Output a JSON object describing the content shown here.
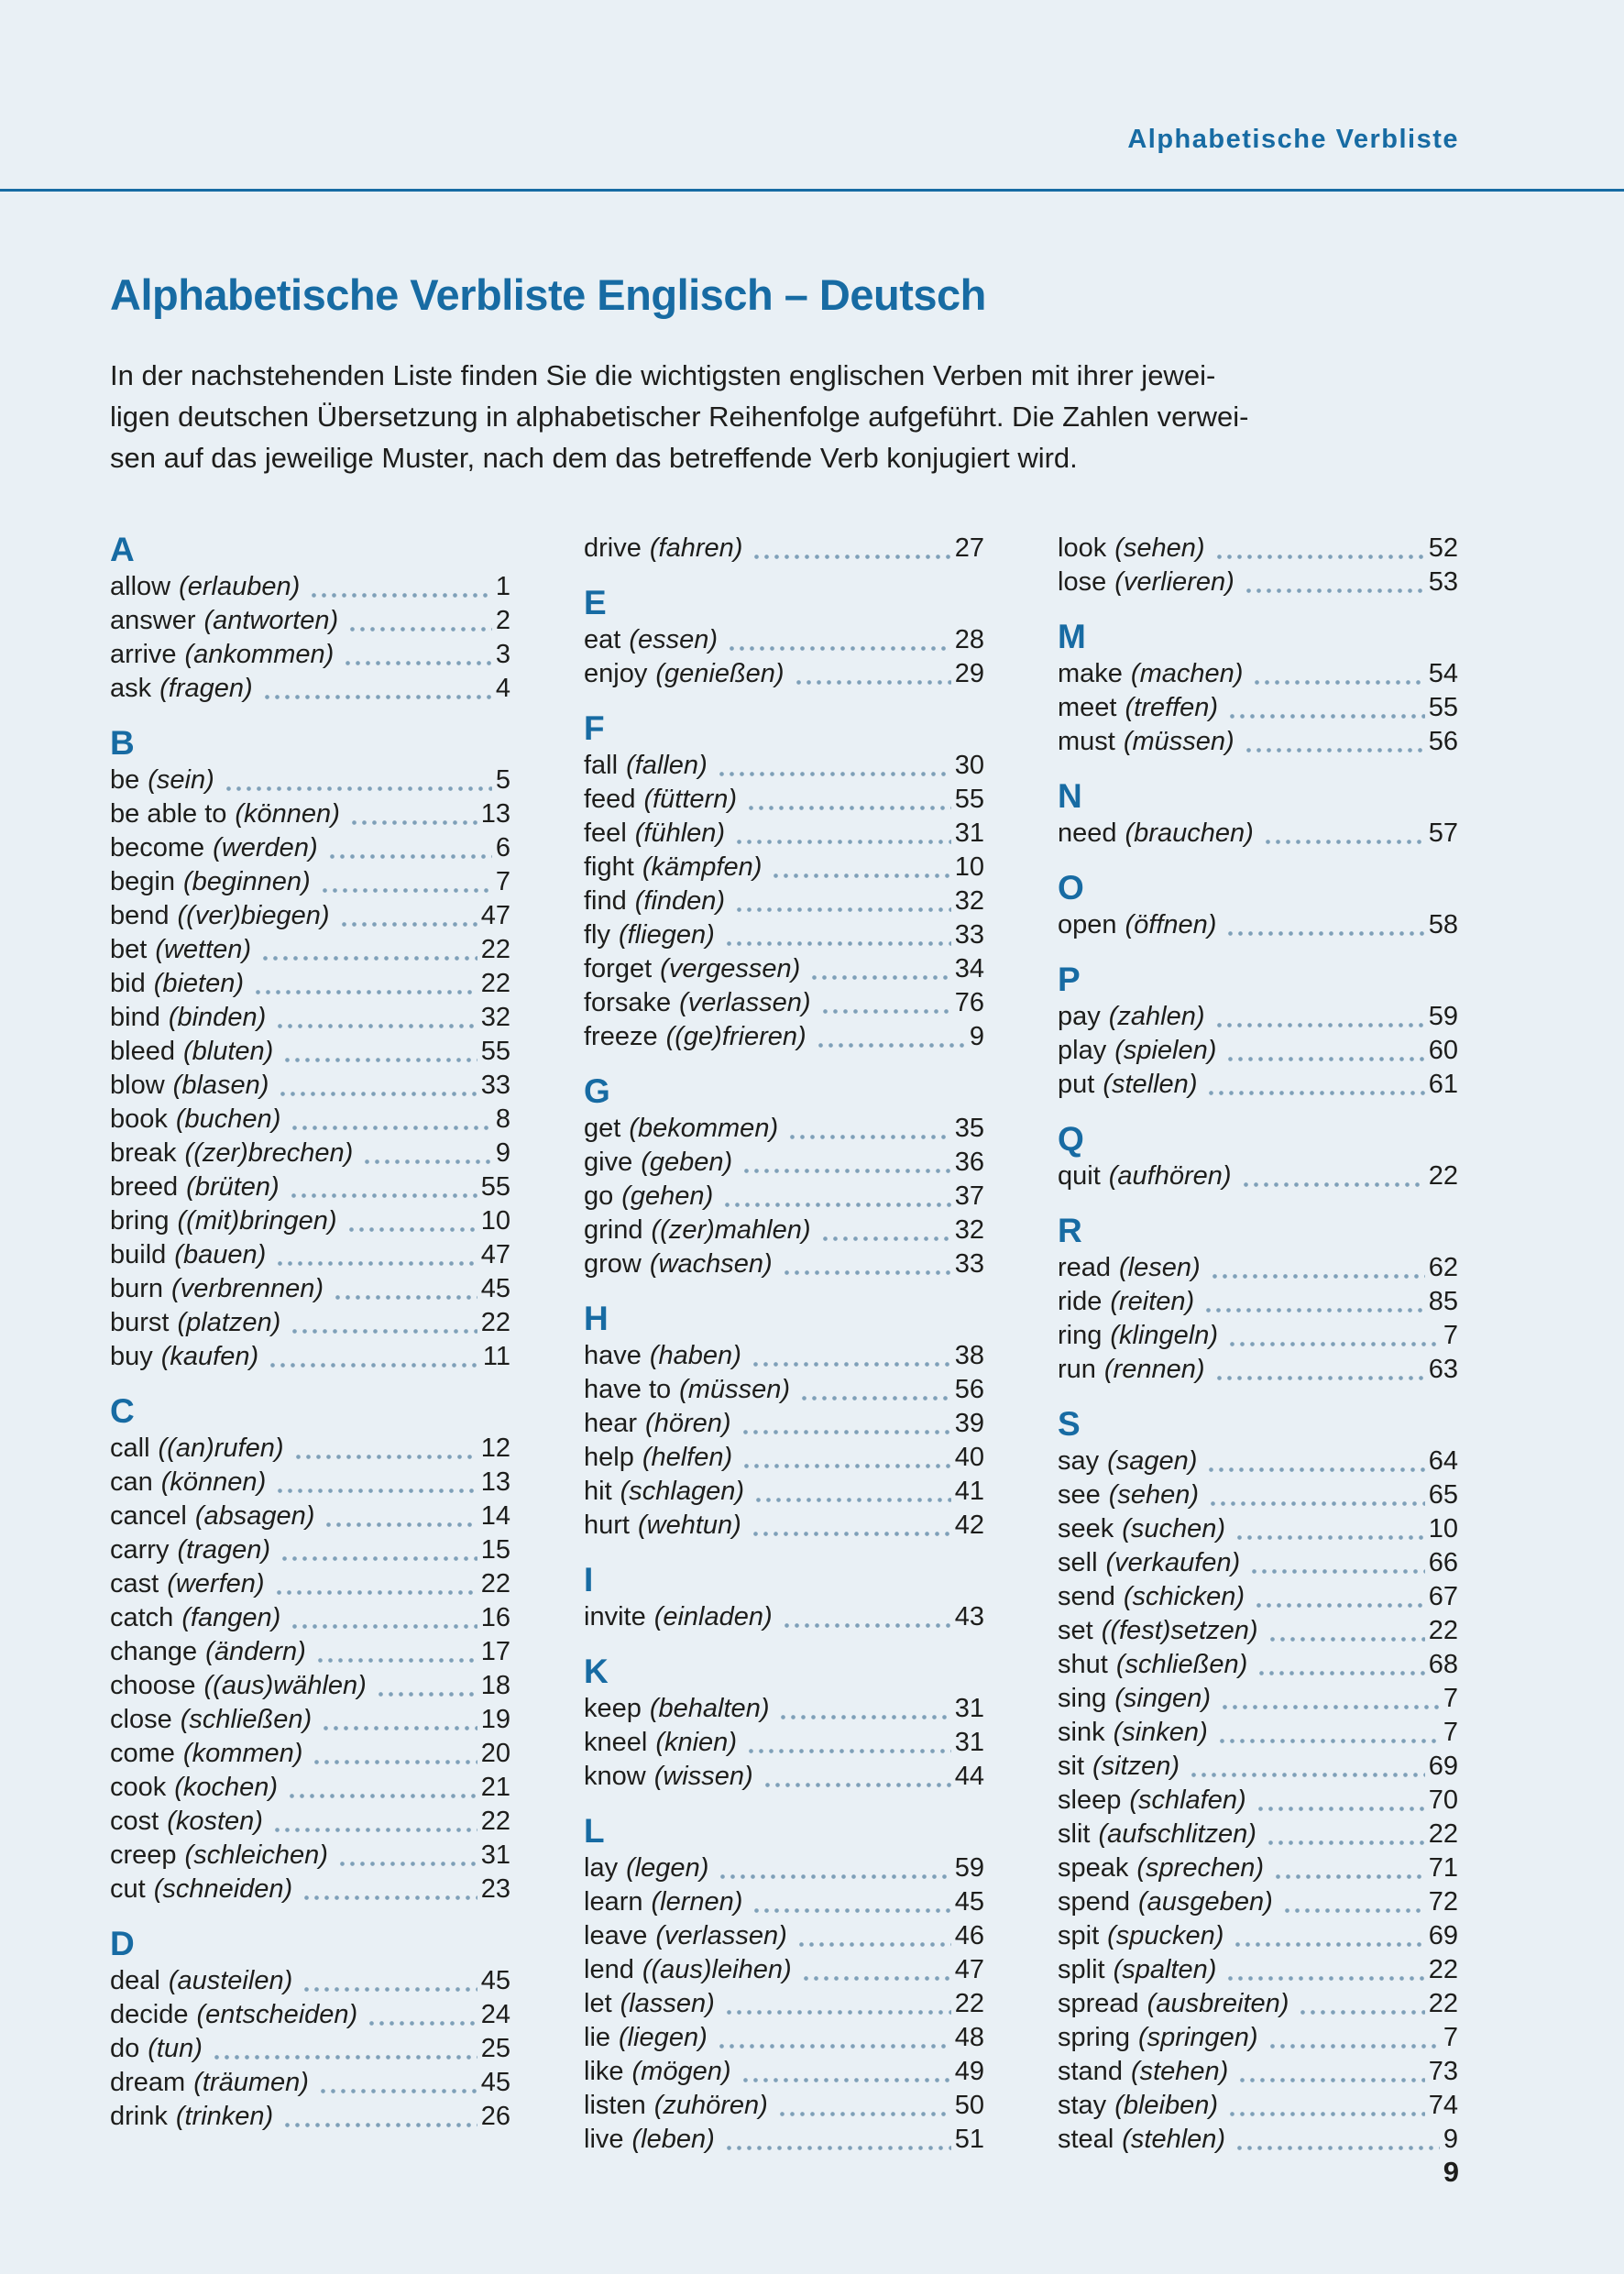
{
  "page": {
    "header": "Alphabetische Verbliste",
    "title": "Alphabetische Verbliste Englisch – Deutsch",
    "intro_lines": [
      "In der nachstehenden Liste finden Sie die wichtigsten englischen Verben mit ihrer jewei-",
      "ligen deutschen Übersetzung in alphabetischer Reihenfolge aufgeführt. Die Zahlen verwei-",
      "sen auf das jeweilige Muster, nach dem das betreffende Verb konjugiert wird."
    ],
    "page_number": "9"
  },
  "colors": {
    "accent": "#176ba3",
    "background": "#e9f0f5",
    "text": "#1d1d1b",
    "dots": "#7fa0b8"
  },
  "columns": [
    {
      "groups": [
        {
          "letter": "A",
          "entries": [
            [
              "allow",
              "(erlauben)",
              "1"
            ],
            [
              "answer",
              "(antworten)",
              "2"
            ],
            [
              "arrive",
              "(ankommen)",
              "3"
            ],
            [
              "ask",
              "(fragen)",
              "4"
            ]
          ]
        },
        {
          "letter": "B",
          "entries": [
            [
              "be",
              "(sein)",
              "5"
            ],
            [
              "be able to",
              "(können)",
              "13"
            ],
            [
              "become",
              "(werden)",
              "6"
            ],
            [
              "begin",
              "(beginnen)",
              "7"
            ],
            [
              "bend",
              "((ver)biegen)",
              "47"
            ],
            [
              "bet",
              "(wetten)",
              "22"
            ],
            [
              "bid",
              "(bieten)",
              "22"
            ],
            [
              "bind",
              "(binden)",
              "32"
            ],
            [
              "bleed",
              "(bluten)",
              "55"
            ],
            [
              "blow",
              "(blasen)",
              "33"
            ],
            [
              "book",
              "(buchen)",
              "8"
            ],
            [
              "break",
              "((zer)brechen)",
              "9"
            ],
            [
              "breed",
              "(brüten)",
              "55"
            ],
            [
              "bring",
              "((mit)bringen)",
              "10"
            ],
            [
              "build",
              "(bauen)",
              "47"
            ],
            [
              "burn",
              "(verbrennen)",
              "45"
            ],
            [
              "burst",
              "(platzen)",
              "22"
            ],
            [
              "buy",
              "(kaufen)",
              "11"
            ]
          ]
        },
        {
          "letter": "C",
          "entries": [
            [
              "call",
              "((an)rufen)",
              "12"
            ],
            [
              "can",
              "(können)",
              "13"
            ],
            [
              "cancel",
              "(absagen)",
              "14"
            ],
            [
              "carry",
              "(tragen)",
              "15"
            ],
            [
              "cast",
              "(werfen)",
              "22"
            ],
            [
              "catch",
              "(fangen)",
              "16"
            ],
            [
              "change",
              "(ändern)",
              "17"
            ],
            [
              "choose",
              "((aus)wählen)",
              "18"
            ],
            [
              "close",
              "(schließen)",
              "19"
            ],
            [
              "come",
              "(kommen)",
              "20"
            ],
            [
              "cook",
              "(kochen)",
              "21"
            ],
            [
              "cost",
              "(kosten)",
              "22"
            ],
            [
              "creep",
              "(schleichen)",
              "31"
            ],
            [
              "cut",
              "(schneiden)",
              "23"
            ]
          ]
        },
        {
          "letter": "D",
          "entries": [
            [
              "deal",
              "(austeilen)",
              "45"
            ],
            [
              "decide",
              "(entscheiden)",
              "24"
            ],
            [
              "do",
              "(tun)",
              "25"
            ],
            [
              "dream",
              "(träumen)",
              "45"
            ],
            [
              "drink",
              "(trinken)",
              "26"
            ]
          ]
        }
      ]
    },
    {
      "groups": [
        {
          "letter": "",
          "entries": [
            [
              "drive",
              "(fahren)",
              "27"
            ]
          ]
        },
        {
          "letter": "E",
          "entries": [
            [
              "eat",
              "(essen)",
              "28"
            ],
            [
              "enjoy",
              "(genießen)",
              "29"
            ]
          ]
        },
        {
          "letter": "F",
          "entries": [
            [
              "fall",
              "(fallen)",
              "30"
            ],
            [
              "feed",
              "(füttern)",
              "55"
            ],
            [
              "feel",
              "(fühlen)",
              "31"
            ],
            [
              "fight",
              "(kämpfen)",
              "10"
            ],
            [
              "find",
              "(finden)",
              "32"
            ],
            [
              "fly",
              "(fliegen)",
              "33"
            ],
            [
              "forget",
              "(vergessen)",
              "34"
            ],
            [
              "forsake",
              "(verlassen)",
              "76"
            ],
            [
              "freeze",
              "((ge)frieren)",
              "9"
            ]
          ]
        },
        {
          "letter": "G",
          "entries": [
            [
              "get",
              "(bekommen)",
              "35"
            ],
            [
              "give",
              "(geben)",
              "36"
            ],
            [
              "go",
              "(gehen)",
              "37"
            ],
            [
              "grind",
              "((zer)mahlen)",
              "32"
            ],
            [
              "grow",
              "(wachsen)",
              "33"
            ]
          ]
        },
        {
          "letter": "H",
          "entries": [
            [
              "have",
              "(haben)",
              "38"
            ],
            [
              "have to",
              "(müssen)",
              "56"
            ],
            [
              "hear",
              "(hören)",
              "39"
            ],
            [
              "help",
              "(helfen)",
              "40"
            ],
            [
              "hit",
              "(schlagen)",
              "41"
            ],
            [
              "hurt",
              "(wehtun)",
              "42"
            ]
          ]
        },
        {
          "letter": "I",
          "entries": [
            [
              "invite",
              "(einladen)",
              "43"
            ]
          ]
        },
        {
          "letter": "K",
          "entries": [
            [
              "keep",
              "(behalten)",
              "31"
            ],
            [
              "kneel",
              "(knien)",
              "31"
            ],
            [
              "know",
              "(wissen)",
              "44"
            ]
          ]
        },
        {
          "letter": "L",
          "entries": [
            [
              "lay",
              "(legen)",
              "59"
            ],
            [
              "learn",
              "(lernen)",
              "45"
            ],
            [
              "leave",
              "(verlassen)",
              "46"
            ],
            [
              "lend",
              "((aus)leihen)",
              "47"
            ],
            [
              "let",
              "(lassen)",
              "22"
            ],
            [
              "lie",
              "(liegen)",
              "48"
            ],
            [
              "like",
              "(mögen)",
              "49"
            ],
            [
              "listen",
              "(zuhören)",
              "50"
            ],
            [
              "live",
              "(leben)",
              "51"
            ]
          ]
        }
      ]
    },
    {
      "groups": [
        {
          "letter": "",
          "entries": [
            [
              "look",
              "(sehen)",
              "52"
            ],
            [
              "lose",
              "(verlieren)",
              "53"
            ]
          ]
        },
        {
          "letter": "M",
          "entries": [
            [
              "make",
              "(machen)",
              "54"
            ],
            [
              "meet",
              "(treffen)",
              "55"
            ],
            [
              "must",
              "(müssen)",
              "56"
            ]
          ]
        },
        {
          "letter": "N",
          "entries": [
            [
              "need",
              "(brauchen)",
              "57"
            ]
          ]
        },
        {
          "letter": "O",
          "entries": [
            [
              "open",
              "(öffnen)",
              "58"
            ]
          ]
        },
        {
          "letter": "P",
          "entries": [
            [
              "pay",
              "(zahlen)",
              "59"
            ],
            [
              "play",
              "(spielen)",
              "60"
            ],
            [
              "put",
              "(stellen)",
              "61"
            ]
          ]
        },
        {
          "letter": "Q",
          "entries": [
            [
              "quit",
              "(aufhören)",
              "22"
            ]
          ]
        },
        {
          "letter": "R",
          "entries": [
            [
              "read",
              "(lesen)",
              "62"
            ],
            [
              "ride",
              "(reiten)",
              "85"
            ],
            [
              "ring",
              "(klingeln)",
              "7"
            ],
            [
              "run",
              "(rennen)",
              "63"
            ]
          ]
        },
        {
          "letter": "S",
          "entries": [
            [
              "say",
              "(sagen)",
              "64"
            ],
            [
              "see",
              "(sehen)",
              "65"
            ],
            [
              "seek",
              "(suchen)",
              "10"
            ],
            [
              "sell",
              "(verkaufen)",
              "66"
            ],
            [
              "send",
              "(schicken)",
              "67"
            ],
            [
              "set",
              "((fest)setzen)",
              "22"
            ],
            [
              "shut",
              "(schließen)",
              "68"
            ],
            [
              "sing",
              "(singen)",
              "7"
            ],
            [
              "sink",
              "(sinken)",
              "7"
            ],
            [
              "sit",
              "(sitzen)",
              "69"
            ],
            [
              "sleep",
              "(schlafen)",
              "70"
            ],
            [
              "slit",
              "(aufschlitzen)",
              "22"
            ],
            [
              "speak",
              "(sprechen)",
              "71"
            ],
            [
              "spend",
              "(ausgeben)",
              "72"
            ],
            [
              "spit",
              "(spucken)",
              "69"
            ],
            [
              "split",
              "(spalten)",
              "22"
            ],
            [
              "spread",
              "(ausbreiten)",
              "22"
            ],
            [
              "spring",
              "(springen)",
              "7"
            ],
            [
              "stand",
              "(stehen)",
              "73"
            ],
            [
              "stay",
              "(bleiben)",
              "74"
            ],
            [
              "steal",
              "(stehlen)",
              "9"
            ]
          ]
        }
      ]
    }
  ]
}
